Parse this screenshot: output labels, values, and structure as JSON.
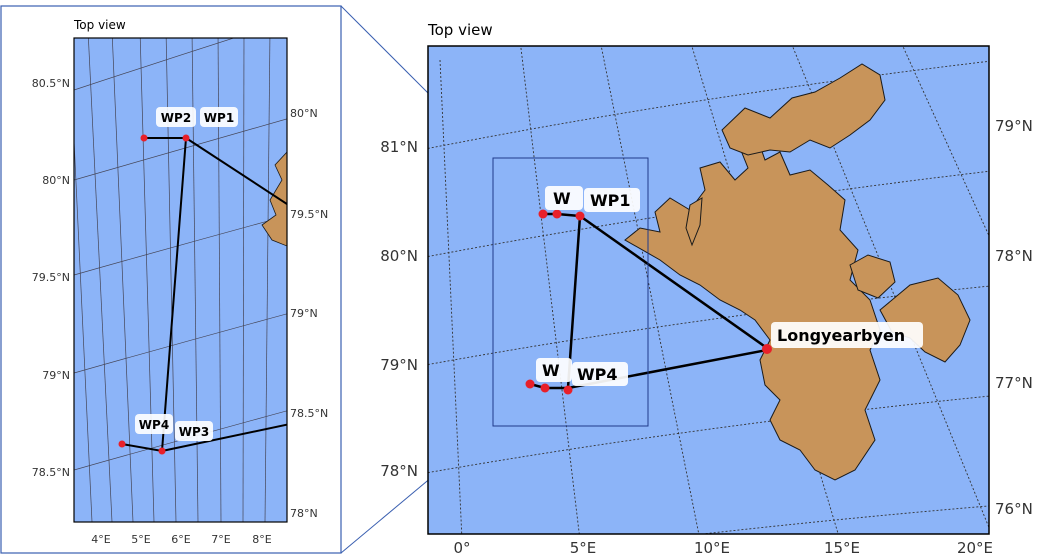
{
  "colors": {
    "ocean": "#8CB4F8",
    "land": "#C8945A",
    "coast": "#1a1a1a",
    "route": "#000000",
    "waypoint": "#E8202A",
    "frame": "#3a5fb0"
  },
  "inset_panel": {
    "title": "Top view",
    "lat_left_ticks": [
      "80.5°N",
      "80°N",
      "79.5°N",
      "79°N",
      "78.5°N"
    ],
    "lat_right_ticks": [
      "80°N",
      "79.5°N",
      "79°N",
      "78.5°N",
      "78°N"
    ],
    "lon_ticks": [
      "4°E",
      "5°E",
      "6°E",
      "7°E",
      "8°E"
    ],
    "waypoint_labels": [
      "WP2",
      "WP1",
      "WP4",
      "WP3"
    ]
  },
  "main_panel": {
    "title": "Top view",
    "lat_left_ticks": [
      "81°N",
      "80°N",
      "79°N",
      "78°N"
    ],
    "lat_right_ticks": [
      "79°N",
      "78°N",
      "77°N",
      "76°N"
    ],
    "lon_ticks": [
      "0°",
      "5°E",
      "10°E",
      "15°E",
      "20°E"
    ],
    "waypoint_labels": [
      "W",
      "WP1",
      "W",
      "WP4"
    ],
    "city_label": "Longyearbyen"
  }
}
